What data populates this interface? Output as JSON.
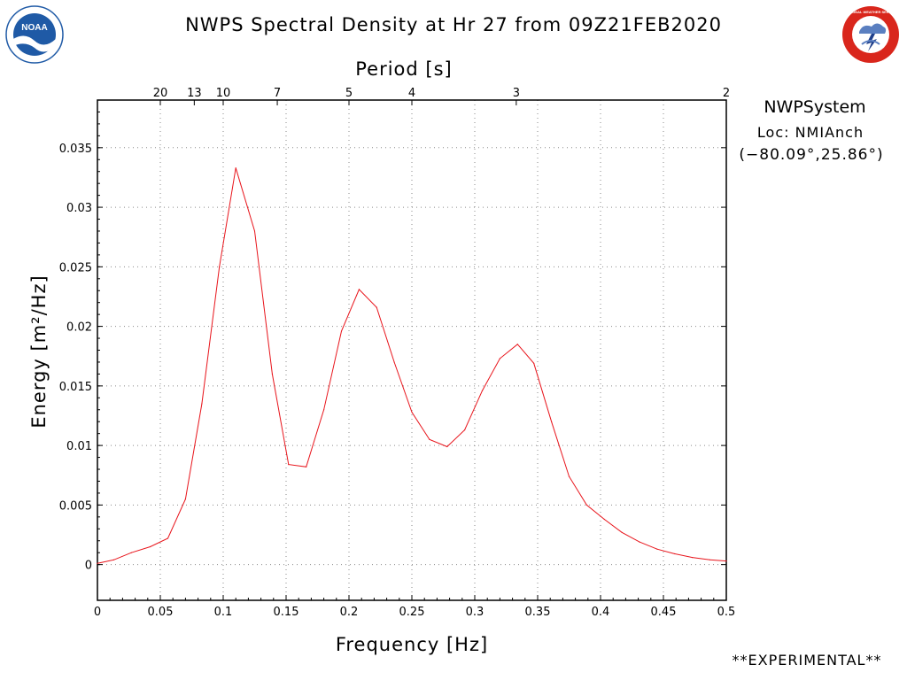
{
  "header": {
    "title": "NWPS Spectral Density at Hr 27 from 09Z21FEB2020",
    "noaa_logo_text": "NOAA",
    "nws_logo_text": "NATIONAL WEATHER SERVICE"
  },
  "info": {
    "system": "NWPSystem",
    "location": "Loc: NMIAnch",
    "coordinates": "(−80.09°,25.86°)",
    "experimental": "**EXPERIMENTAL**"
  },
  "colors": {
    "series": "#e8141b",
    "grid": "#8a8a8a",
    "axis": "#000000",
    "noaa_blue": "#1f5aa6",
    "nws_red": "#d9261c"
  },
  "chart_data": {
    "type": "line",
    "title": "NWPS Spectral Density at Hr 27 from 09Z21FEB2020",
    "xlabel": "Frequency [Hz]",
    "ylabel": "Energy [m²/Hz]",
    "top_axis_label": "Period [s]",
    "xlim": [
      0,
      0.5
    ],
    "ylim": [
      -0.003,
      0.039
    ],
    "grid": true,
    "x_ticks": [
      "0",
      "0.05",
      "0.1",
      "0.15",
      "0.2",
      "0.25",
      "0.3",
      "0.35",
      "0.4",
      "0.45",
      "0.5"
    ],
    "x_tick_values": [
      0,
      0.05,
      0.1,
      0.15,
      0.2,
      0.25,
      0.3,
      0.35,
      0.4,
      0.45,
      0.5
    ],
    "y_ticks": [
      "0",
      "0.005",
      "0.01",
      "0.015",
      "0.02",
      "0.025",
      "0.03",
      "0.035"
    ],
    "y_tick_values": [
      0,
      0.005,
      0.01,
      0.015,
      0.02,
      0.025,
      0.03,
      0.035
    ],
    "period_ticks": [
      "20",
      "13",
      "10",
      "7",
      "5",
      "4",
      "3",
      "2"
    ],
    "period_tick_freqs": [
      0.05,
      0.077,
      0.1,
      0.143,
      0.2,
      0.25,
      0.333,
      0.5
    ],
    "series": [
      {
        "x": [
          0,
          0.013,
          0.027,
          0.042,
          0.056,
          0.07,
          0.083,
          0.097,
          0.11,
          0.125,
          0.139,
          0.152,
          0.166,
          0.18,
          0.194,
          0.208,
          0.222,
          0.236,
          0.25,
          0.264,
          0.278,
          0.292,
          0.306,
          0.32,
          0.334,
          0.347,
          0.361,
          0.375,
          0.389,
          0.403,
          0.417,
          0.431,
          0.445,
          0.459,
          0.473,
          0.487,
          0.5
        ],
        "y": [
          0.0001,
          0.0004,
          0.001,
          0.0015,
          0.0022,
          0.0055,
          0.0135,
          0.025,
          0.0333,
          0.028,
          0.016,
          0.0084,
          0.0082,
          0.013,
          0.0196,
          0.0231,
          0.0216,
          0.017,
          0.0128,
          0.0105,
          0.0099,
          0.0113,
          0.0146,
          0.0173,
          0.0185,
          0.0169,
          0.012,
          0.0074,
          0.005,
          0.0038,
          0.0027,
          0.0019,
          0.0013,
          0.0009,
          0.0006,
          0.0004,
          0.0003
        ]
      }
    ]
  }
}
